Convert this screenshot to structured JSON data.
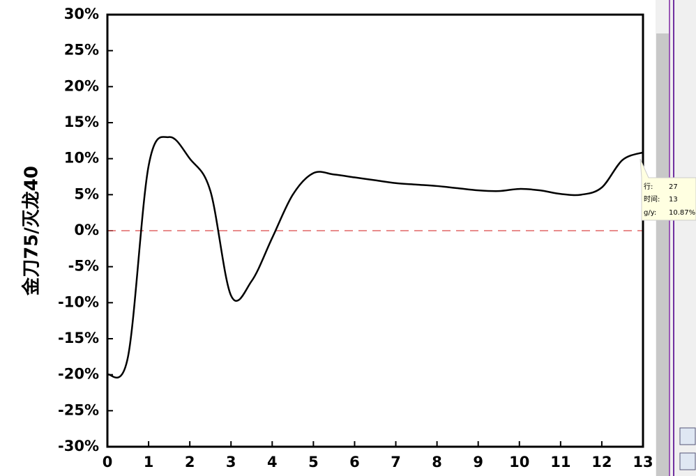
{
  "chart_data": {
    "type": "line",
    "y_label": "金刀75/灭龙40",
    "x": [
      0,
      0.5,
      1,
      1.5,
      2,
      2.5,
      3,
      3.5,
      4,
      4.5,
      5,
      5.5,
      6,
      6.5,
      7,
      7.5,
      8,
      8.5,
      9,
      9.5,
      10,
      10.5,
      11,
      11.5,
      12,
      12.5,
      13
    ],
    "series": [
      {
        "color": "#000000",
        "values": [
          -20,
          -17.5,
          9,
          13,
          10,
          5.5,
          -9,
          -7,
          -1,
          5,
          8,
          7.8,
          7.4,
          7,
          6.6,
          6.4,
          6.2,
          5.9,
          5.6,
          5.5,
          5.8,
          5.6,
          5.1,
          5.0,
          6,
          9.8,
          10.87
        ]
      }
    ],
    "xlim": [
      0,
      13
    ],
    "xticks": [
      0,
      1,
      2,
      3,
      4,
      5,
      6,
      7,
      8,
      9,
      10,
      11,
      12,
      13
    ],
    "ylim": [
      -30,
      30
    ],
    "yticks": [
      {
        "value": -30,
        "label": "-30%"
      },
      {
        "value": -25,
        "label": "-25%"
      },
      {
        "value": -20,
        "label": "-20%"
      },
      {
        "value": -15,
        "label": "-15%"
      },
      {
        "value": -10,
        "label": "-10%"
      },
      {
        "value": -5,
        "label": "-5%"
      },
      {
        "value": 0,
        "label": "0%"
      },
      {
        "value": 5,
        "label": "5%"
      },
      {
        "value": 10,
        "label": "10%"
      },
      {
        "value": 15,
        "label": "15%"
      },
      {
        "value": 20,
        "label": "20%"
      },
      {
        "value": 25,
        "label": "25%"
      },
      {
        "value": 30,
        "label": "30%"
      }
    ],
    "reference_line": {
      "value": 0,
      "color": "#e06666"
    },
    "tooltip": {
      "row_label": "行:",
      "row": "27",
      "x_label": "时间:",
      "x": "13",
      "y_label": "g/y:",
      "y": "10.87%"
    }
  }
}
